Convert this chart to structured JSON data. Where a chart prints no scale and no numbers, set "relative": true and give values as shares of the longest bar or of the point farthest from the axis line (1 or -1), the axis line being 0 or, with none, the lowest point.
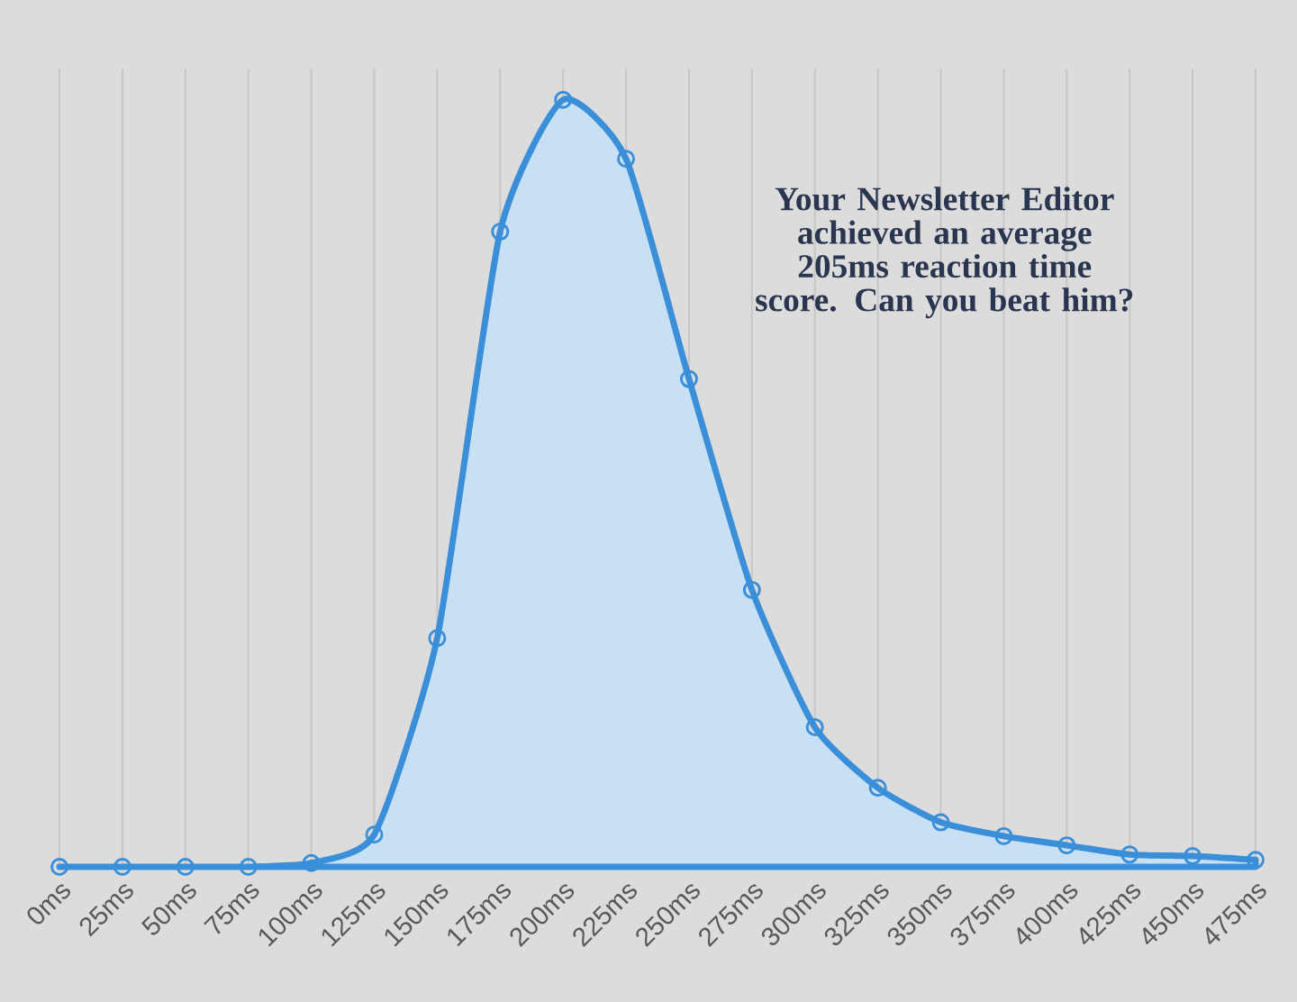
{
  "chart_data": {
    "type": "area",
    "relative": true,
    "categories": [
      "0ms",
      "25ms",
      "50ms",
      "75ms",
      "100ms",
      "125ms",
      "150ms",
      "175ms",
      "200ms",
      "225ms",
      "250ms",
      "275ms",
      "300ms",
      "325ms",
      "350ms",
      "375ms",
      "400ms",
      "425ms",
      "450ms",
      "475ms"
    ],
    "values": [
      0,
      0,
      0,
      0,
      0.005,
      0.042,
      0.298,
      0.828,
      1,
      0.923,
      0.636,
      0.361,
      0.182,
      0.103,
      0.058,
      0.04,
      0.028,
      0.016,
      0.014,
      0.009
    ],
    "color": "#3a8fd8",
    "grid": "x",
    "marker": "circle",
    "annotations": [
      "Your Newsletter Editor achieved an average 205ms reaction time score. Can you beat him?"
    ]
  }
}
